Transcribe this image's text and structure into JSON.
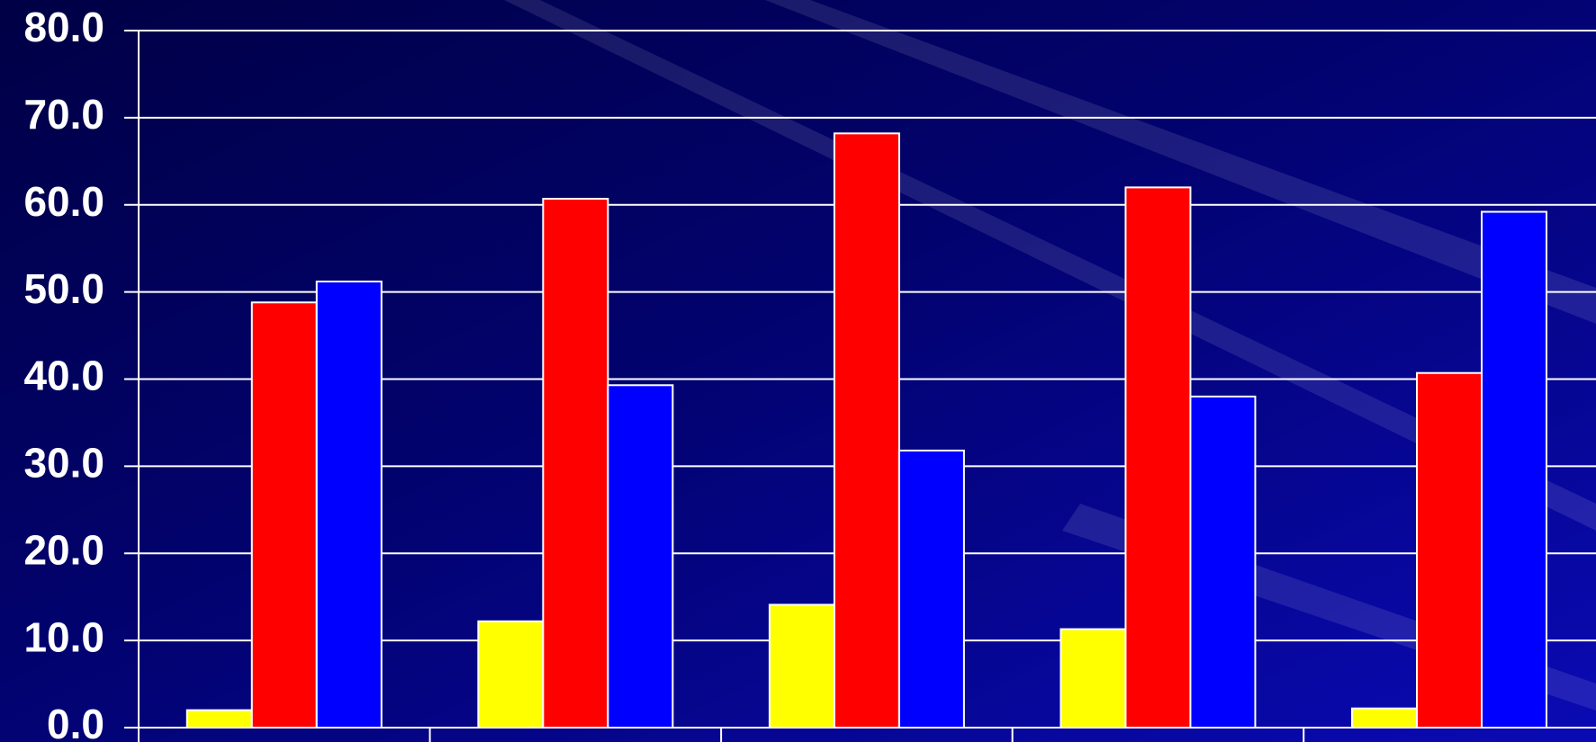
{
  "colors": {
    "background_dark": "#000045",
    "background_light": "#0a0ab4",
    "grid": "#ffffff",
    "bar_outline": "#ffffff",
    "axis_text": "#ffffff"
  },
  "chart_data": {
    "type": "bar",
    "title": "",
    "xlabel": "",
    "ylabel": "",
    "ylim": [
      0,
      80
    ],
    "y_ticks": [
      "0.0",
      "10.0",
      "20.0",
      "30.0",
      "40.0",
      "50.0",
      "60.0",
      "70.0",
      "80.0"
    ],
    "grid": true,
    "legend": "none",
    "categories": [
      "",
      "",
      "",
      "",
      ""
    ],
    "series": [
      {
        "color": "#ffff00",
        "values": [
          2.0,
          12.2,
          14.1,
          11.3,
          2.2
        ]
      },
      {
        "color": "#ff0000",
        "values": [
          48.8,
          60.7,
          68.2,
          62.0,
          40.7
        ]
      },
      {
        "color": "#0000ff",
        "values": [
          51.2,
          39.3,
          31.8,
          38.0,
          59.2
        ]
      }
    ]
  }
}
